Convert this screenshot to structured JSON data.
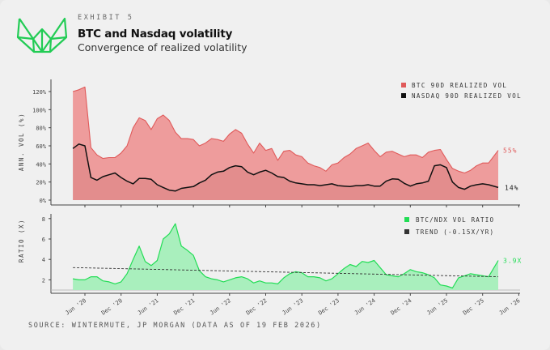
{
  "header": {
    "exhibit": "EXHIBIT 5",
    "title": "BTC and Nasdaq volatility",
    "subtitle": "Convergence of realized volatility"
  },
  "footer": {
    "source": "SOURCE: WINTERMUTE, JP MORGAN (DATA AS OF 19 FEB 2026)"
  },
  "colors": {
    "btc": "#e05a5a",
    "btc_fill": "#ee9c9c",
    "ndx": "#111111",
    "ratio": "#22dd55",
    "ratio_fill": "#a9efbd",
    "trend": "#333333",
    "logo": "#22cc55"
  },
  "chart_data": [
    {
      "type": "area",
      "ylabel": "ANN. VOL (%)",
      "ylim": [
        0,
        125
      ],
      "yticks": [
        0,
        20,
        40,
        60,
        80,
        100,
        120
      ],
      "ytick_labels": [
        "0%",
        "20%",
        "40%",
        "60%",
        "80%",
        "100%",
        "120%"
      ],
      "legend": "top-right",
      "x": [
        "2020-04",
        "2020-05",
        "2020-06",
        "2020-07",
        "2020-08",
        "2020-09",
        "2020-10",
        "2020-11",
        "2020-12",
        "2021-01",
        "2021-02",
        "2021-03",
        "2021-04",
        "2021-05",
        "2021-06",
        "2021-07",
        "2021-08",
        "2021-09",
        "2021-10",
        "2021-11",
        "2021-12",
        "2022-01",
        "2022-02",
        "2022-03",
        "2022-04",
        "2022-05",
        "2022-06",
        "2022-07",
        "2022-08",
        "2022-09",
        "2022-10",
        "2022-11",
        "2022-12",
        "2023-01",
        "2023-02",
        "2023-03",
        "2023-04",
        "2023-05",
        "2023-06",
        "2023-07",
        "2023-08",
        "2023-09",
        "2023-10",
        "2023-11",
        "2023-12",
        "2024-01",
        "2024-02",
        "2024-03",
        "2024-04",
        "2024-05",
        "2024-06",
        "2024-07",
        "2024-08",
        "2024-09",
        "2024-10",
        "2024-11",
        "2024-12",
        "2025-01",
        "2025-02",
        "2025-03",
        "2025-04",
        "2025-05",
        "2025-06",
        "2025-07",
        "2025-08",
        "2025-09",
        "2025-10",
        "2025-11",
        "2025-12",
        "2026-01",
        "2026-02-19"
      ],
      "series": [
        {
          "name": "BTC 90D REALIZED VOL",
          "end_label": "55%",
          "values": [
            120,
            122,
            125,
            58,
            50,
            46,
            47,
            47,
            52,
            60,
            80,
            91,
            88,
            78,
            90,
            94,
            88,
            75,
            68,
            68,
            67,
            60,
            63,
            68,
            67,
            65,
            73,
            78,
            74,
            62,
            52,
            63,
            55,
            57,
            44,
            54,
            55,
            50,
            48,
            41,
            38,
            36,
            32,
            39,
            41,
            47,
            51,
            57,
            60,
            63,
            55,
            48,
            53,
            54,
            51,
            48,
            50,
            50,
            47,
            53,
            55,
            56,
            45,
            35,
            32,
            30,
            33,
            38,
            41,
            41,
            55
          ]
        },
        {
          "name": "NASDAQ 90D REALIZED VOL",
          "end_label": "14%",
          "values": [
            57,
            62,
            60,
            25,
            22,
            26,
            28,
            30,
            25,
            21,
            18,
            24,
            24,
            23,
            17,
            14,
            11,
            10,
            13,
            14,
            15,
            19,
            22,
            28,
            31,
            32,
            36,
            38,
            37,
            31,
            28,
            31,
            33,
            30,
            26,
            25,
            21,
            19,
            18,
            17,
            17,
            16,
            17,
            18,
            16,
            15.5,
            15,
            16,
            16,
            17,
            15.5,
            15.5,
            21,
            23.5,
            23,
            18.5,
            15.5,
            18,
            19,
            21,
            38,
            39,
            36,
            20,
            14,
            12,
            15.5,
            17,
            18,
            17,
            14
          ]
        }
      ]
    },
    {
      "type": "area",
      "ylabel": "RATIO (X)",
      "ylim": [
        0.7,
        8.3
      ],
      "yticks": [
        2,
        4,
        6,
        8
      ],
      "ytick_labels": [
        "2",
        "4",
        "6",
        "8"
      ],
      "legend": "top-right",
      "xtick_labels": [
        "Jun '20",
        "Dec '20",
        "Jun '21",
        "Dec '21",
        "Jun '22",
        "Dec '22",
        "Jun '23",
        "Dec '23",
        "Jun '24",
        "Dec '24",
        "Jun '25",
        "Dec '25",
        "Jun '26"
      ],
      "series": [
        {
          "name": "BTC/NDX VOL RATIO",
          "end_label": "3.9X",
          "values": [
            2.1,
            2.0,
            2.0,
            2.3,
            2.3,
            1.9,
            1.8,
            1.6,
            1.8,
            2.6,
            4.0,
            5.3,
            3.8,
            3.4,
            3.9,
            6.0,
            6.5,
            7.5,
            5.3,
            4.9,
            4.4,
            2.9,
            2.3,
            2.1,
            2.0,
            1.8,
            2.0,
            2.2,
            2.3,
            2.1,
            1.7,
            1.9,
            1.7,
            1.7,
            1.6,
            2.2,
            2.6,
            2.8,
            2.7,
            2.3,
            2.3,
            2.2,
            1.9,
            2.1,
            2.6,
            3.1,
            3.5,
            3.3,
            3.8,
            3.7,
            3.9,
            3.2,
            2.5,
            2.4,
            2.3,
            2.6,
            3.0,
            2.8,
            2.7,
            2.5,
            2.2,
            1.5,
            1.4,
            1.2,
            2.2,
            2.4,
            2.6,
            2.5,
            2.4,
            2.3,
            3.9
          ]
        },
        {
          "name": "TREND (-0.15X/YR)",
          "type": "dashed-line",
          "values": [
            3.2,
            2.3
          ]
        }
      ]
    }
  ]
}
